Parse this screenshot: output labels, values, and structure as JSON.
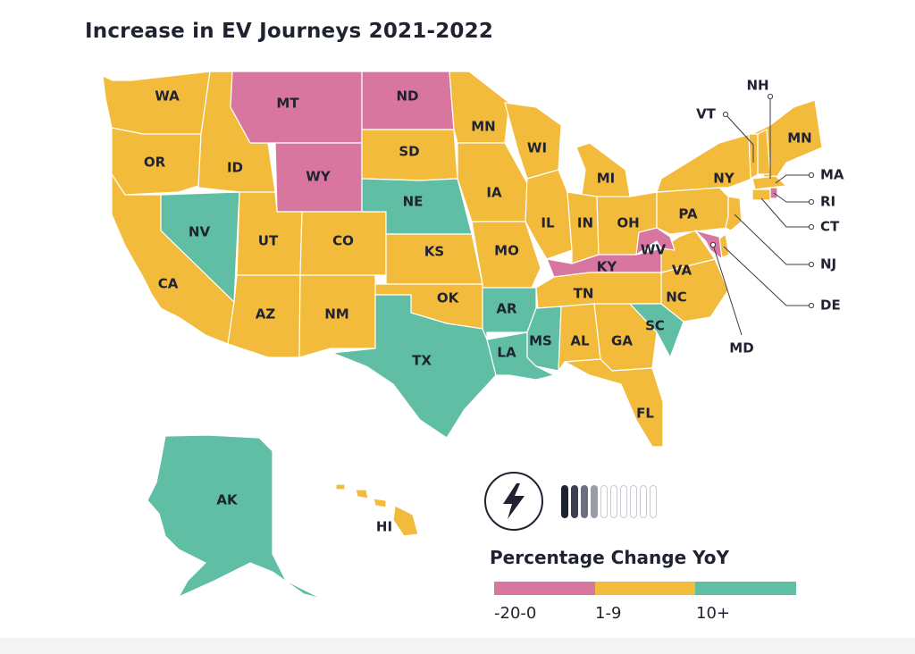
{
  "title": "Increase in EV Journeys 2021-2022",
  "legend": {
    "title": "Percentage Change YoY",
    "categories": [
      {
        "key": "neg",
        "label": "-20-0",
        "color": "#d9769f"
      },
      {
        "key": "mid",
        "label": "1-9",
        "color": "#f2bb3c"
      },
      {
        "key": "high",
        "label": "10+",
        "color": "#5fbea3"
      }
    ]
  },
  "icons": {
    "badge": "lightning-bolt-icon",
    "meter": "battery-level-icon"
  },
  "meter_fill": 0.3,
  "states": [
    {
      "abbr": "WA",
      "category": "mid"
    },
    {
      "abbr": "OR",
      "category": "mid"
    },
    {
      "abbr": "CA",
      "category": "mid"
    },
    {
      "abbr": "ID",
      "category": "mid"
    },
    {
      "abbr": "NV",
      "category": "high"
    },
    {
      "abbr": "MT",
      "category": "neg"
    },
    {
      "abbr": "WY",
      "category": "neg"
    },
    {
      "abbr": "UT",
      "category": "mid"
    },
    {
      "abbr": "AZ",
      "category": "mid"
    },
    {
      "abbr": "CO",
      "category": "mid"
    },
    {
      "abbr": "NM",
      "category": "mid"
    },
    {
      "abbr": "ND",
      "category": "neg"
    },
    {
      "abbr": "SD",
      "category": "mid"
    },
    {
      "abbr": "NE",
      "category": "high"
    },
    {
      "abbr": "KS",
      "category": "mid"
    },
    {
      "abbr": "OK",
      "category": "mid"
    },
    {
      "abbr": "TX",
      "category": "high"
    },
    {
      "abbr": "MN",
      "category": "mid"
    },
    {
      "abbr": "IA",
      "category": "mid"
    },
    {
      "abbr": "MO",
      "category": "mid"
    },
    {
      "abbr": "AR",
      "category": "high"
    },
    {
      "abbr": "LA",
      "category": "high"
    },
    {
      "abbr": "WI",
      "category": "mid"
    },
    {
      "abbr": "IL",
      "category": "mid"
    },
    {
      "abbr": "MI",
      "category": "mid"
    },
    {
      "abbr": "IN",
      "category": "mid"
    },
    {
      "abbr": "OH",
      "category": "mid"
    },
    {
      "abbr": "KY",
      "category": "neg"
    },
    {
      "abbr": "TN",
      "category": "mid"
    },
    {
      "abbr": "MS",
      "category": "high"
    },
    {
      "abbr": "AL",
      "category": "mid"
    },
    {
      "abbr": "GA",
      "category": "mid"
    },
    {
      "abbr": "FL",
      "category": "mid"
    },
    {
      "abbr": "SC",
      "category": "high"
    },
    {
      "abbr": "NC",
      "category": "mid"
    },
    {
      "abbr": "VA",
      "category": "mid"
    },
    {
      "abbr": "WV",
      "category": "neg"
    },
    {
      "abbr": "PA",
      "category": "mid"
    },
    {
      "abbr": "NY",
      "category": "mid"
    },
    {
      "abbr": "MN",
      "category": "mid"
    },
    {
      "abbr": "VT",
      "category": "mid"
    },
    {
      "abbr": "NH",
      "category": "mid"
    },
    {
      "abbr": "MA",
      "category": "mid"
    },
    {
      "abbr": "RI",
      "category": "neg"
    },
    {
      "abbr": "CT",
      "category": "mid"
    },
    {
      "abbr": "NJ",
      "category": "mid"
    },
    {
      "abbr": "DE",
      "category": "mid"
    },
    {
      "abbr": "MD",
      "category": "neg"
    },
    {
      "abbr": "AK",
      "category": "high"
    },
    {
      "abbr": "HI",
      "category": "mid"
    }
  ]
}
